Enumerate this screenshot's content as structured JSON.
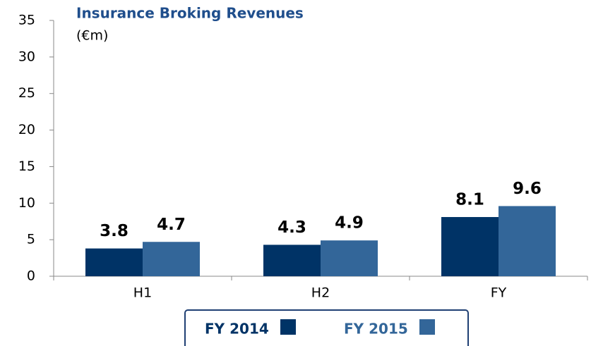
{
  "chart_data": {
    "type": "bar",
    "title": "Insurance Broking Revenues",
    "subtitle": "(€m)",
    "categories": [
      "H1",
      "H2",
      "FY"
    ],
    "series": [
      {
        "name": "FY 2014",
        "color": "#003366",
        "values": [
          3.8,
          4.3,
          8.1
        ]
      },
      {
        "name": "FY 2015",
        "color": "#336699",
        "values": [
          4.7,
          4.9,
          9.6
        ]
      }
    ],
    "ylim": [
      0,
      35
    ],
    "yticks": [
      0,
      5,
      10,
      15,
      20,
      25,
      30,
      35
    ],
    "grid": false
  }
}
